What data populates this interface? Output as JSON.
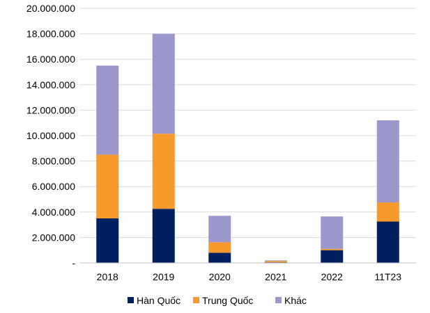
{
  "chart_data": {
    "type": "bar",
    "stacked": true,
    "categories": [
      "2018",
      "2019",
      "2020",
      "2021",
      "2022",
      "11T23"
    ],
    "series": [
      {
        "name": "Hàn Quốc",
        "color": "#002060",
        "values": [
          3500000,
          4250000,
          800000,
          50000,
          1000000,
          3250000
        ]
      },
      {
        "name": "Trung Quốc",
        "color": "#f79a2b",
        "values": [
          5000000,
          5900000,
          820000,
          100000,
          100000,
          1500000
        ]
      },
      {
        "name": "Khác",
        "color": "#9b97cc",
        "values": [
          7000000,
          7850000,
          2080000,
          50000,
          2550000,
          6450000
        ]
      }
    ],
    "ylim": [
      0,
      20000000
    ],
    "yticks": [
      0,
      2000000,
      4000000,
      6000000,
      8000000,
      10000000,
      12000000,
      14000000,
      16000000,
      18000000,
      20000000
    ],
    "ytick_labels": [
      "-",
      "2.000.000",
      "4.000.000",
      "6.000.000",
      "8.000.000",
      "10.000.000",
      "12.000.000",
      "14.000.000",
      "16.000.000",
      "18.000.000",
      "20.000.000"
    ],
    "grid": true,
    "legend_position": "bottom"
  }
}
